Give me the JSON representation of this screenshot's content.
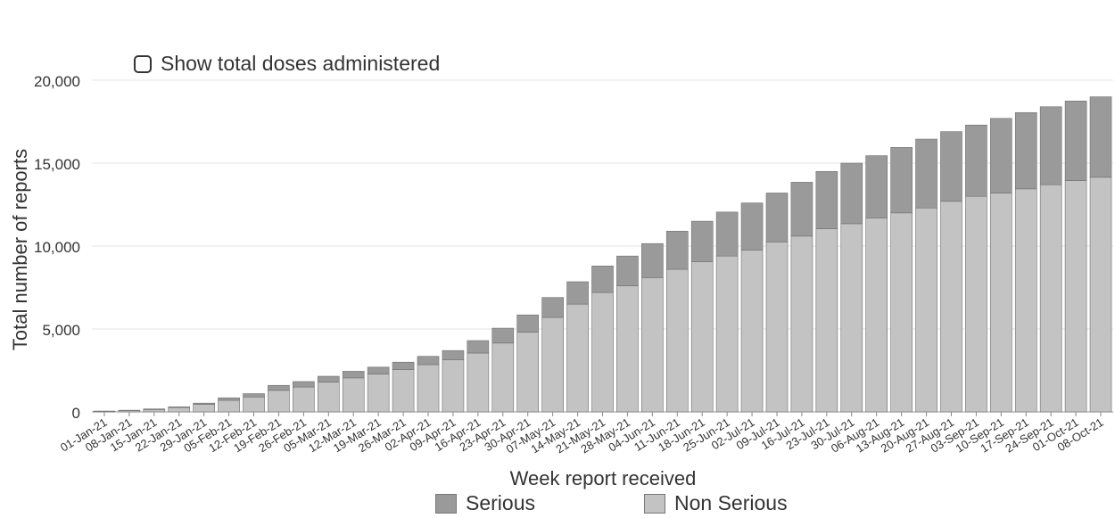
{
  "colors": {
    "serious": "#9a9a9a",
    "non_serious": "#c3c3c3",
    "bar_edge": "#6f6f6f",
    "grid": "#e3e3e3",
    "text": "#333333"
  },
  "controls": {
    "show_total_doses_label": "Show total doses administered",
    "show_total_doses_checked": false
  },
  "chart_data": {
    "type": "bar",
    "stacked": true,
    "title": "",
    "xlabel": "Week report received",
    "ylabel": "Total number of reports",
    "ylim": [
      0,
      20000
    ],
    "yticks": [
      0,
      5000,
      10000,
      15000,
      20000
    ],
    "ytick_labels": [
      "0",
      "5,000",
      "10,000",
      "15,000",
      "20,000"
    ],
    "grid": true,
    "legend_position": "bottom",
    "categories": [
      "01-Jan-21",
      "08-Jan-21",
      "15-Jan-21",
      "22-Jan-21",
      "29-Jan-21",
      "05-Feb-21",
      "12-Feb-21",
      "19-Feb-21",
      "26-Feb-21",
      "05-Mar-21",
      "12-Mar-21",
      "19-Mar-21",
      "26-Mar-21",
      "02-Apr-21",
      "09-Apr-21",
      "16-Apr-21",
      "23-Apr-21",
      "30-Apr-21",
      "07-May-21",
      "14-May-21",
      "21-May-21",
      "28-May-21",
      "04-Jun-21",
      "11-Jun-21",
      "18-Jun-21",
      "25-Jun-21",
      "02-Jul-21",
      "09-Jul-21",
      "16-Jul-21",
      "23-Jul-21",
      "30-Jul-21",
      "06-Aug-21",
      "13-Aug-21",
      "20-Aug-21",
      "27-Aug-21",
      "03-Sep-21",
      "10-Sep-21",
      "17-Sep-21",
      "24-Sep-21",
      "01-Oct-21",
      "08-Oct-21"
    ],
    "series": [
      {
        "name": "Non Serious",
        "values": [
          40,
          80,
          140,
          260,
          450,
          700,
          900,
          1300,
          1500,
          1800,
          2050,
          2280,
          2550,
          2850,
          3150,
          3550,
          4150,
          4800,
          5700,
          6500,
          7200,
          7600,
          8100,
          8600,
          9050,
          9400,
          9750,
          10250,
          10600,
          11050,
          11350,
          11700,
          12000,
          12300,
          12700,
          13000,
          13200,
          13450,
          13700,
          13950,
          14150
        ]
      },
      {
        "name": "Serious",
        "values": [
          10,
          20,
          40,
          50,
          80,
          150,
          200,
          300,
          330,
          350,
          400,
          420,
          450,
          500,
          550,
          750,
          900,
          1050,
          1200,
          1350,
          1600,
          1800,
          2050,
          2300,
          2450,
          2650,
          2850,
          2950,
          3250,
          3450,
          3650,
          3750,
          3950,
          4150,
          4200,
          4300,
          4500,
          4600,
          4700,
          4800,
          4850
        ]
      }
    ]
  }
}
